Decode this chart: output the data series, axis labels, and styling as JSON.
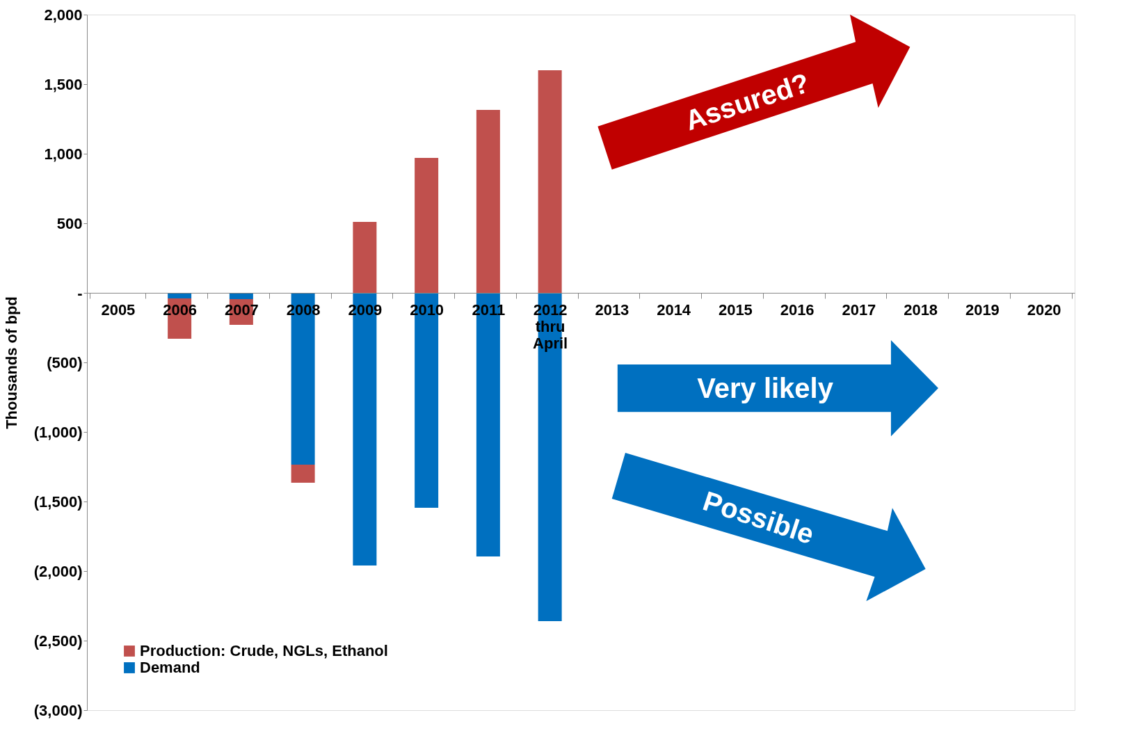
{
  "chart_data": {
    "type": "bar",
    "stacked": true,
    "ylabel": "Thousands of bpd",
    "categories": [
      "2005",
      "2006",
      "2007",
      "2008",
      "2009",
      "2010",
      "2011",
      "2012 thru April",
      "2013",
      "2014",
      "2015",
      "2016",
      "2017",
      "2018",
      "2019",
      "2020"
    ],
    "series": [
      {
        "name": "Demand",
        "color": "#0070c0",
        "values": [
          null,
          -40,
          -45,
          -1235,
          -1960,
          -1545,
          -1895,
          -2360,
          null,
          null,
          null,
          null,
          null,
          null,
          null,
          null
        ]
      },
      {
        "name": "Production: Crude, NGLs, Ethanol",
        "color": "#c0504d",
        "values": [
          null,
          -290,
          -185,
          -130,
          510,
          970,
          1315,
          1600,
          null,
          null,
          null,
          null,
          null,
          null,
          null,
          null
        ]
      }
    ],
    "ylim": [
      -3000,
      2000
    ],
    "yticks": [
      {
        "value": -3000,
        "label": "(3,000)"
      },
      {
        "value": -2500,
        "label": "(2,500)"
      },
      {
        "value": -2000,
        "label": "(2,000)"
      },
      {
        "value": -1500,
        "label": "(1,500)"
      },
      {
        "value": -1000,
        "label": "(1,000)"
      },
      {
        "value": -500,
        "label": "(500)"
      },
      {
        "value": 0,
        "label": "-"
      },
      {
        "value": 500,
        "label": "500"
      },
      {
        "value": 1000,
        "label": "1,000"
      },
      {
        "value": 1500,
        "label": "1,500"
      },
      {
        "value": 2000,
        "label": "2,000"
      }
    ],
    "legend": "bottom left",
    "grid": false,
    "annotations": [
      "Assured?",
      "Very likely",
      "Possible"
    ]
  }
}
